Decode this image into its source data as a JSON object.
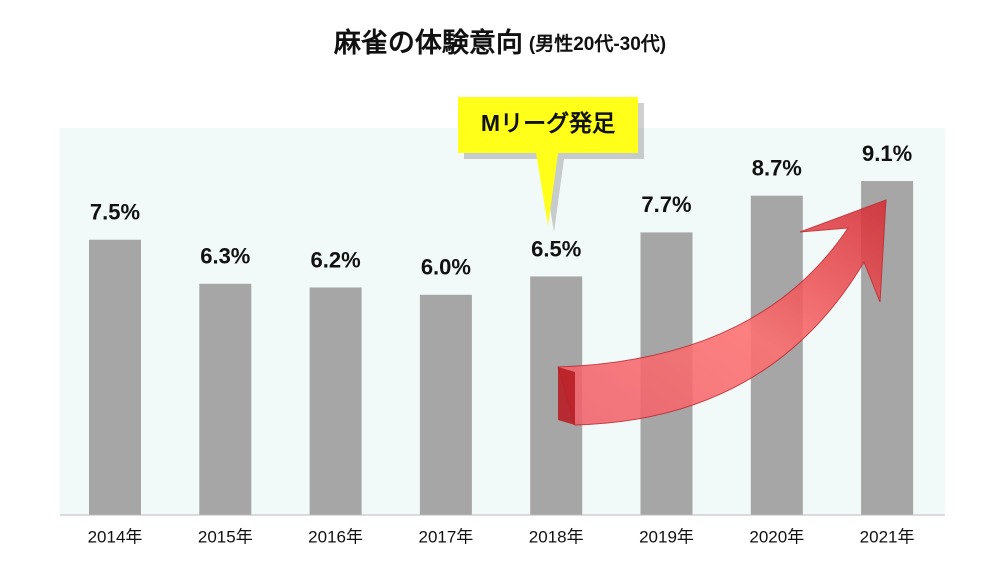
{
  "chart_data": {
    "type": "bar",
    "title": "麻雀の体験意向",
    "subtitle": "(男性20代-30代)",
    "annotation": "Mリーグ発足",
    "categories": [
      "2014年",
      "2015年",
      "2016年",
      "2017年",
      "2018年",
      "2019年",
      "2020年",
      "2021年"
    ],
    "values": [
      7.5,
      6.3,
      6.2,
      6.0,
      6.5,
      7.7,
      8.7,
      9.1
    ],
    "value_labels": [
      "7.5%",
      "6.3%",
      "6.2%",
      "6.0%",
      "6.5%",
      "7.7%",
      "8.7%",
      "9.1%"
    ],
    "color": "#a6a6a6"
  }
}
